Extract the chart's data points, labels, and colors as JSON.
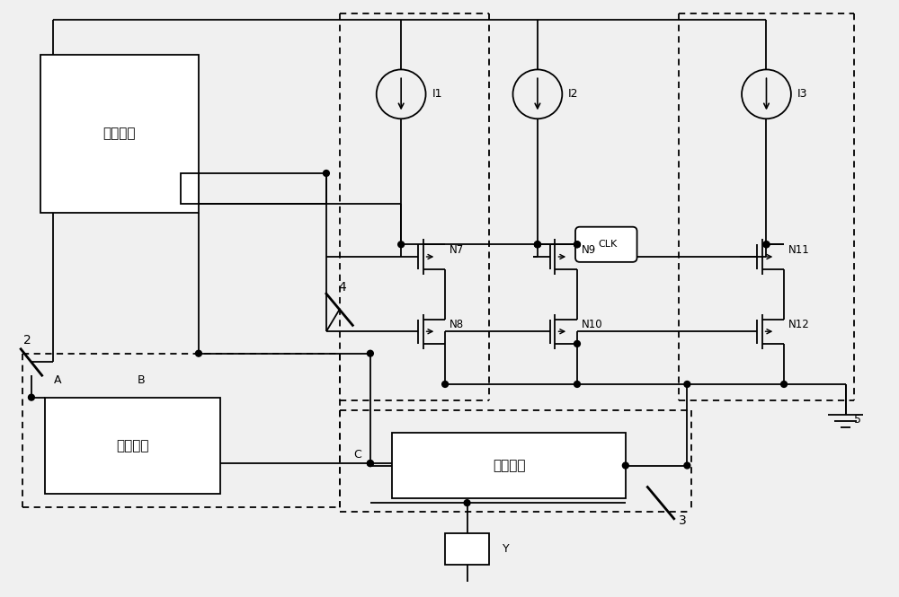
{
  "figsize": [
    10.0,
    6.65
  ],
  "dpi": 100,
  "bg_color": "#f0f0f0",
  "labels": {
    "main_block": "主体回路",
    "detector_block": "检波电路",
    "feedback_block": "反馈回路",
    "I1": "I1",
    "I2": "I2",
    "I3": "I3",
    "N7": "N7",
    "N8": "N8",
    "N9": "N9",
    "N10": "N10",
    "N11": "N11",
    "N12": "N12",
    "CLK": "CLK",
    "Y": "Y",
    "A": "A",
    "B": "B",
    "C": "C",
    "num2": "2",
    "num3": "3",
    "num4": "4",
    "num5": "5"
  }
}
